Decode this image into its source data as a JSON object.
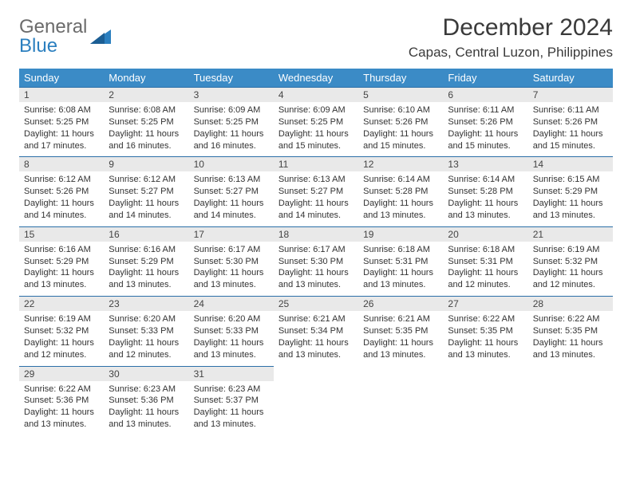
{
  "logo": {
    "general": "General",
    "blue": "Blue"
  },
  "title": "December 2024",
  "location": "Capas, Central Luzon, Philippines",
  "colors": {
    "header_bg": "#3b8bc6",
    "header_text": "#ffffff",
    "daybar_bg": "#e9e9e9",
    "daybar_border": "#2b6fa8",
    "logo_gray": "#6b6b6b",
    "logo_blue": "#2b7fbf"
  },
  "weekdays": [
    "Sunday",
    "Monday",
    "Tuesday",
    "Wednesday",
    "Thursday",
    "Friday",
    "Saturday"
  ],
  "days": {
    "1": {
      "sunrise": "6:08 AM",
      "sunset": "5:25 PM",
      "dh": "11",
      "dm": "17"
    },
    "2": {
      "sunrise": "6:08 AM",
      "sunset": "5:25 PM",
      "dh": "11",
      "dm": "16"
    },
    "3": {
      "sunrise": "6:09 AM",
      "sunset": "5:25 PM",
      "dh": "11",
      "dm": "16"
    },
    "4": {
      "sunrise": "6:09 AM",
      "sunset": "5:25 PM",
      "dh": "11",
      "dm": "15"
    },
    "5": {
      "sunrise": "6:10 AM",
      "sunset": "5:26 PM",
      "dh": "11",
      "dm": "15"
    },
    "6": {
      "sunrise": "6:11 AM",
      "sunset": "5:26 PM",
      "dh": "11",
      "dm": "15"
    },
    "7": {
      "sunrise": "6:11 AM",
      "sunset": "5:26 PM",
      "dh": "11",
      "dm": "15"
    },
    "8": {
      "sunrise": "6:12 AM",
      "sunset": "5:26 PM",
      "dh": "11",
      "dm": "14"
    },
    "9": {
      "sunrise": "6:12 AM",
      "sunset": "5:27 PM",
      "dh": "11",
      "dm": "14"
    },
    "10": {
      "sunrise": "6:13 AM",
      "sunset": "5:27 PM",
      "dh": "11",
      "dm": "14"
    },
    "11": {
      "sunrise": "6:13 AM",
      "sunset": "5:27 PM",
      "dh": "11",
      "dm": "14"
    },
    "12": {
      "sunrise": "6:14 AM",
      "sunset": "5:28 PM",
      "dh": "11",
      "dm": "13"
    },
    "13": {
      "sunrise": "6:14 AM",
      "sunset": "5:28 PM",
      "dh": "11",
      "dm": "13"
    },
    "14": {
      "sunrise": "6:15 AM",
      "sunset": "5:29 PM",
      "dh": "11",
      "dm": "13"
    },
    "15": {
      "sunrise": "6:16 AM",
      "sunset": "5:29 PM",
      "dh": "11",
      "dm": "13"
    },
    "16": {
      "sunrise": "6:16 AM",
      "sunset": "5:29 PM",
      "dh": "11",
      "dm": "13"
    },
    "17": {
      "sunrise": "6:17 AM",
      "sunset": "5:30 PM",
      "dh": "11",
      "dm": "13"
    },
    "18": {
      "sunrise": "6:17 AM",
      "sunset": "5:30 PM",
      "dh": "11",
      "dm": "13"
    },
    "19": {
      "sunrise": "6:18 AM",
      "sunset": "5:31 PM",
      "dh": "11",
      "dm": "13"
    },
    "20": {
      "sunrise": "6:18 AM",
      "sunset": "5:31 PM",
      "dh": "11",
      "dm": "12"
    },
    "21": {
      "sunrise": "6:19 AM",
      "sunset": "5:32 PM",
      "dh": "11",
      "dm": "12"
    },
    "22": {
      "sunrise": "6:19 AM",
      "sunset": "5:32 PM",
      "dh": "11",
      "dm": "12"
    },
    "23": {
      "sunrise": "6:20 AM",
      "sunset": "5:33 PM",
      "dh": "11",
      "dm": "12"
    },
    "24": {
      "sunrise": "6:20 AM",
      "sunset": "5:33 PM",
      "dh": "11",
      "dm": "13"
    },
    "25": {
      "sunrise": "6:21 AM",
      "sunset": "5:34 PM",
      "dh": "11",
      "dm": "13"
    },
    "26": {
      "sunrise": "6:21 AM",
      "sunset": "5:35 PM",
      "dh": "11",
      "dm": "13"
    },
    "27": {
      "sunrise": "6:22 AM",
      "sunset": "5:35 PM",
      "dh": "11",
      "dm": "13"
    },
    "28": {
      "sunrise": "6:22 AM",
      "sunset": "5:35 PM",
      "dh": "11",
      "dm": "13"
    },
    "29": {
      "sunrise": "6:22 AM",
      "sunset": "5:36 PM",
      "dh": "11",
      "dm": "13"
    },
    "30": {
      "sunrise": "6:23 AM",
      "sunset": "5:36 PM",
      "dh": "11",
      "dm": "13"
    },
    "31": {
      "sunrise": "6:23 AM",
      "sunset": "5:37 PM",
      "dh": "11",
      "dm": "13"
    }
  },
  "labels": {
    "sunrise": "Sunrise:",
    "sunset": "Sunset:",
    "daylight_prefix": "Daylight:",
    "hours_word": "hours",
    "and_word": "and",
    "minutes_word": "minutes."
  },
  "layout": {
    "first_weekday_index": 0,
    "num_days": 31
  }
}
